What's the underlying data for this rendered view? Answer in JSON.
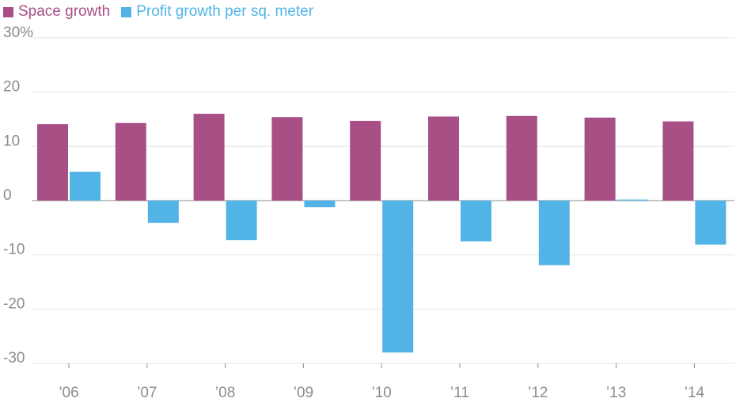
{
  "chart_data": {
    "type": "bar",
    "title": "",
    "xlabel": "",
    "ylabel": "",
    "categories": [
      "’06",
      "’07",
      "’08",
      "’09",
      "’10",
      "’11",
      "’12",
      "’13",
      "’14"
    ],
    "series": [
      {
        "name": "Space growth",
        "color": "#a84f86",
        "values": [
          14.1,
          14.3,
          16.0,
          15.4,
          14.7,
          15.5,
          15.6,
          15.3,
          14.6
        ]
      },
      {
        "name": "Profit growth per sq. meter",
        "color": "#52b4e6",
        "values": [
          5.3,
          -4.1,
          -7.3,
          -1.2,
          -28.0,
          -7.5,
          -11.9,
          0.2,
          -8.1
        ]
      }
    ],
    "ylim": [
      -30,
      30
    ],
    "yticks": [
      30,
      20,
      10,
      0,
      -10,
      -20,
      -30
    ],
    "ytick_labels": [
      "30%",
      "20",
      "10",
      "0",
      "-10",
      "-20",
      "-30"
    ],
    "grid": true,
    "legend_position": "top-left"
  }
}
